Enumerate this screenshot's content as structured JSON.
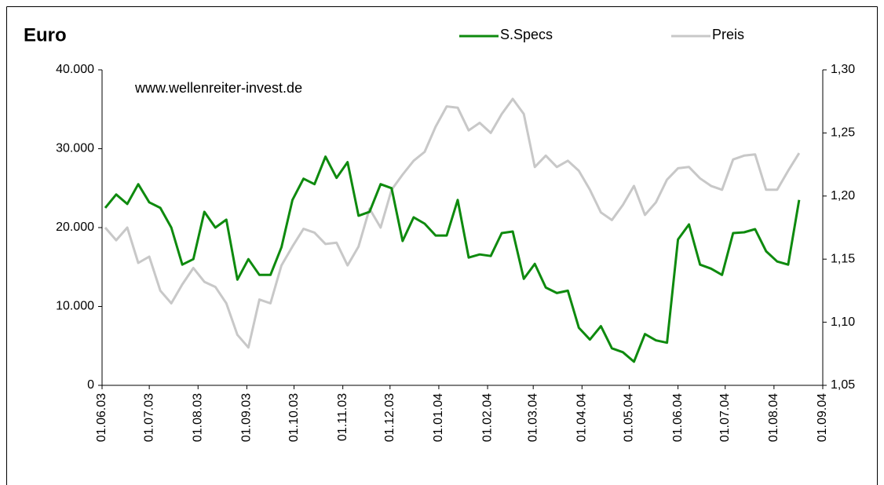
{
  "chart_data": {
    "type": "line",
    "title": "Euro",
    "annotation": "www.wellenreiter-invest.de",
    "x": [
      "03.06.03",
      "10.06.03",
      "17.06.03",
      "24.06.03",
      "01.07.03",
      "08.07.03",
      "15.07.03",
      "22.07.03",
      "29.07.03",
      "05.08.03",
      "12.08.03",
      "19.08.03",
      "26.08.03",
      "02.09.03",
      "09.09.03",
      "16.09.03",
      "23.09.03",
      "30.09.03",
      "07.10.03",
      "14.10.03",
      "21.10.03",
      "28.10.03",
      "04.11.03",
      "11.11.03",
      "18.11.03",
      "25.11.03",
      "02.12.03",
      "09.12.03",
      "16.12.03",
      "23.12.03",
      "30.12.03",
      "06.01.04",
      "13.01.04",
      "20.01.04",
      "27.01.04",
      "03.02.04",
      "10.02.04",
      "17.02.04",
      "24.02.04",
      "02.03.04",
      "09.03.04",
      "16.03.04",
      "23.03.04",
      "30.03.04",
      "06.04.04",
      "13.04.04",
      "20.04.04",
      "27.04.04",
      "04.05.04",
      "11.05.04",
      "18.05.04",
      "25.05.04",
      "01.06.04",
      "08.06.04",
      "15.06.04",
      "22.06.04",
      "29.06.04",
      "06.07.04",
      "13.07.04",
      "20.07.04",
      "27.07.04",
      "03.08.04",
      "10.08.04",
      "17.08.04"
    ],
    "series": [
      {
        "name": "S.Specs",
        "color": "#0e8a0e",
        "axis": "y",
        "values": [
          22500,
          24200,
          23000,
          25500,
          23200,
          22500,
          20000,
          15300,
          16000,
          22000,
          20000,
          21000,
          13400,
          16000,
          14000,
          14000,
          17500,
          23500,
          26200,
          25500,
          29000,
          26300,
          28300,
          21500,
          22000,
          25500,
          25000,
          18300,
          21300,
          20500,
          19000,
          19000,
          23500,
          16200,
          16600,
          16400,
          19300,
          19500,
          13500,
          15400,
          12400,
          11700,
          12000,
          7300,
          5800,
          7500,
          4700,
          4200,
          3000,
          6500,
          5700,
          5400,
          18500,
          20400,
          15300,
          14800,
          14000,
          19300,
          19400,
          19800,
          17000,
          15700,
          15300,
          23500
        ]
      },
      {
        "name": "Preis",
        "color": "#c8c8c8",
        "axis": "y2",
        "values": [
          1.175,
          1.165,
          1.175,
          1.147,
          1.152,
          1.125,
          1.115,
          1.13,
          1.143,
          1.132,
          1.128,
          1.115,
          1.09,
          1.08,
          1.118,
          1.115,
          1.145,
          1.16,
          1.174,
          1.171,
          1.162,
          1.163,
          1.145,
          1.16,
          1.19,
          1.175,
          1.205,
          1.217,
          1.228,
          1.235,
          1.255,
          1.271,
          1.27,
          1.252,
          1.258,
          1.25,
          1.265,
          1.277,
          1.265,
          1.223,
          1.232,
          1.223,
          1.228,
          1.22,
          1.205,
          1.187,
          1.181,
          1.193,
          1.208,
          1.185,
          1.195,
          1.213,
          1.222,
          1.223,
          1.214,
          1.208,
          1.205,
          1.229,
          1.232,
          1.233,
          1.205,
          1.205,
          1.22,
          1.234
        ]
      }
    ],
    "xlim": [
      "01.06.03",
      "01.09.04"
    ],
    "xticks": [
      "01.06.03",
      "01.07.03",
      "01.08.03",
      "01.09.03",
      "01.10.03",
      "01.11.03",
      "01.12.03",
      "01.01.04",
      "01.02.04",
      "01.03.04",
      "01.04.04",
      "01.05.04",
      "01.06.04",
      "01.07.04",
      "01.08.04",
      "01.09.04"
    ],
    "ylim": [
      0,
      40000
    ],
    "yticks": [
      0,
      {
        "value": 10000,
        "label": "10.000"
      },
      {
        "value": 20000,
        "label": "20.000"
      },
      {
        "value": 30000,
        "label": "30.000"
      },
      {
        "value": 40000,
        "label": "40.000"
      }
    ],
    "y2lim": [
      1.05,
      1.3
    ],
    "y2ticks": [
      {
        "value": 1.05,
        "label": "1,05"
      },
      {
        "value": 1.1,
        "label": "1,10"
      },
      {
        "value": 1.15,
        "label": "1,15"
      },
      {
        "value": 1.2,
        "label": "1,20"
      },
      {
        "value": 1.25,
        "label": "1,25"
      },
      {
        "value": 1.3,
        "label": "1,30"
      }
    ],
    "grid": false,
    "legend": "top"
  }
}
